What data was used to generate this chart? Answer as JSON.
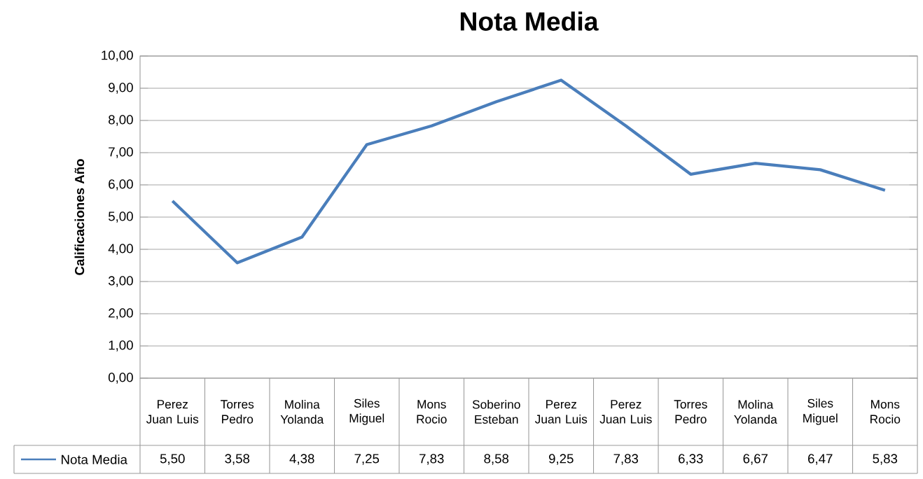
{
  "chart_data": {
    "type": "line",
    "title": "Nota Media",
    "ylabel": "Calificaciones  Año",
    "categories": [
      "Perez Juan Luis",
      "Torres Pedro",
      "Molina Yolanda",
      "Siles Miguel",
      "Mons Rocio",
      "Soberino Esteban",
      "Perez Juan Luis",
      "Perez Juan Luis",
      "Torres Pedro",
      "Molina Yolanda",
      "Siles Miguel",
      "Mons Rocio"
    ],
    "series": [
      {
        "name": "Nota Media",
        "color": "#4a7ebb",
        "values": [
          5.5,
          3.58,
          4.38,
          7.25,
          7.83,
          8.58,
          9.25,
          7.83,
          6.33,
          6.67,
          6.47,
          5.83
        ],
        "value_labels": [
          "5,50",
          "3,58",
          "4,38",
          "7,25",
          "7,83",
          "8,58",
          "9,25",
          "7,83",
          "6,33",
          "6,67",
          "6,47",
          "5,83"
        ]
      }
    ],
    "ylim": [
      0,
      10
    ],
    "yticks": [
      {
        "value": 0,
        "label": "0,00"
      },
      {
        "value": 1,
        "label": "1,00"
      },
      {
        "value": 2,
        "label": "2,00"
      },
      {
        "value": 3,
        "label": "3,00"
      },
      {
        "value": 4,
        "label": "4,00"
      },
      {
        "value": 5,
        "label": "5,00"
      },
      {
        "value": 6,
        "label": "6,00"
      },
      {
        "value": 7,
        "label": "7,00"
      },
      {
        "value": 8,
        "label": "8,00"
      },
      {
        "value": 9,
        "label": "9,00"
      },
      {
        "value": 10,
        "label": "10,00"
      }
    ],
    "grid": "y",
    "legend": "bottom left",
    "marker": "none",
    "line_style": "solid"
  }
}
